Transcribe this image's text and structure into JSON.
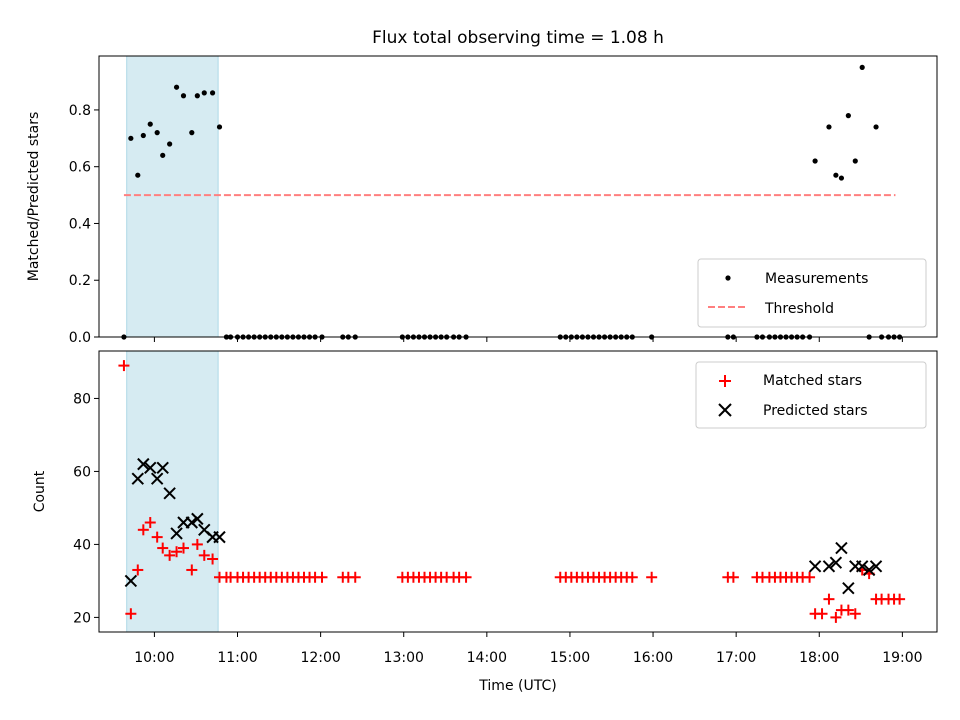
{
  "title": "Flux total observing time = 1.08 h",
  "colors": {
    "measurement": "#000000",
    "threshold": "#ff7f7f",
    "matched": "#ff0000",
    "predicted": "#000000",
    "highlight": "#add8e6"
  },
  "chart_data": [
    {
      "type": "scatter",
      "ylabel": "Matched/Predicted stars",
      "xlabel": "",
      "xlim": [
        "09:20",
        "19:25"
      ],
      "ylim": [
        0,
        0.99
      ],
      "yticks": [
        0.0,
        0.2,
        0.4,
        0.6,
        0.8
      ],
      "ytick_labels": [
        "0.0",
        "0.2",
        "0.4",
        "0.6",
        "0.8"
      ],
      "grid": false,
      "legend_position": "lower-right",
      "shaded_interval": [
        "09:40",
        "10:46"
      ],
      "series": [
        {
          "name": "Measurements",
          "marker": "dot",
          "points": [
            [
              "09:38",
              0.0
            ],
            [
              "09:43",
              0.7
            ],
            [
              "09:48",
              0.57
            ],
            [
              "09:52",
              0.71
            ],
            [
              "09:57",
              0.75
            ],
            [
              "10:02",
              0.72
            ],
            [
              "10:06",
              0.64
            ],
            [
              "10:11",
              0.68
            ],
            [
              "10:16",
              0.88
            ],
            [
              "10:21",
              0.85
            ],
            [
              "10:27",
              0.72
            ],
            [
              "10:31",
              0.85
            ],
            [
              "10:36",
              0.86
            ],
            [
              "10:42",
              0.86
            ],
            [
              "10:47",
              0.74
            ],
            [
              "10:52",
              0.0
            ],
            [
              "10:55",
              0.0
            ],
            [
              "11:00",
              0.0
            ],
            [
              "11:04",
              0.0
            ],
            [
              "11:08",
              0.0
            ],
            [
              "11:12",
              0.0
            ],
            [
              "11:16",
              0.0
            ],
            [
              "11:20",
              0.0
            ],
            [
              "11:24",
              0.0
            ],
            [
              "11:28",
              0.0
            ],
            [
              "11:32",
              0.0
            ],
            [
              "11:36",
              0.0
            ],
            [
              "11:40",
              0.0
            ],
            [
              "11:44",
              0.0
            ],
            [
              "11:48",
              0.0
            ],
            [
              "11:52",
              0.0
            ],
            [
              "11:56",
              0.0
            ],
            [
              "12:01",
              0.0
            ],
            [
              "12:16",
              0.0
            ],
            [
              "12:20",
              0.0
            ],
            [
              "12:25",
              0.0
            ],
            [
              "12:59",
              0.0
            ],
            [
              "13:03",
              0.0
            ],
            [
              "13:07",
              0.0
            ],
            [
              "13:11",
              0.0
            ],
            [
              "13:15",
              0.0
            ],
            [
              "13:19",
              0.0
            ],
            [
              "13:23",
              0.0
            ],
            [
              "13:27",
              0.0
            ],
            [
              "13:31",
              0.0
            ],
            [
              "13:36",
              0.0
            ],
            [
              "13:40",
              0.0
            ],
            [
              "13:45",
              0.0
            ],
            [
              "14:53",
              0.0
            ],
            [
              "14:57",
              0.0
            ],
            [
              "15:01",
              0.0
            ],
            [
              "15:05",
              0.0
            ],
            [
              "15:09",
              0.0
            ],
            [
              "15:13",
              0.0
            ],
            [
              "15:17",
              0.0
            ],
            [
              "15:21",
              0.0
            ],
            [
              "15:25",
              0.0
            ],
            [
              "15:29",
              0.0
            ],
            [
              "15:33",
              0.0
            ],
            [
              "15:37",
              0.0
            ],
            [
              "15:41",
              0.0
            ],
            [
              "15:45",
              0.0
            ],
            [
              "15:59",
              0.0
            ],
            [
              "16:54",
              0.0
            ],
            [
              "16:58",
              0.0
            ],
            [
              "17:15",
              0.0
            ],
            [
              "17:19",
              0.0
            ],
            [
              "17:24",
              0.0
            ],
            [
              "17:28",
              0.0
            ],
            [
              "17:32",
              0.0
            ],
            [
              "17:36",
              0.0
            ],
            [
              "17:40",
              0.0
            ],
            [
              "17:44",
              0.0
            ],
            [
              "17:48",
              0.0
            ],
            [
              "17:53",
              0.0
            ],
            [
              "17:57",
              0.62
            ],
            [
              "18:07",
              0.74
            ],
            [
              "18:12",
              0.57
            ],
            [
              "18:16",
              0.56
            ],
            [
              "18:21",
              0.78
            ],
            [
              "18:26",
              0.62
            ],
            [
              "18:31",
              0.95
            ],
            [
              "18:36",
              0.0
            ],
            [
              "18:41",
              0.74
            ],
            [
              "18:45",
              0.0
            ],
            [
              "18:50",
              0.0
            ],
            [
              "18:54",
              0.0
            ],
            [
              "18:58",
              0.0
            ]
          ]
        },
        {
          "name": "Threshold",
          "type": "line",
          "style": "dashed",
          "points": [
            [
              "09:38",
              0.5
            ],
            [
              "18:55",
              0.5
            ]
          ]
        }
      ]
    },
    {
      "type": "scatter",
      "ylabel": "Count",
      "xlabel": "Time (UTC)",
      "xlim": [
        "09:20",
        "19:25"
      ],
      "ylim": [
        16,
        93
      ],
      "yticks": [
        20,
        40,
        60,
        80
      ],
      "ytick_labels": [
        "20",
        "40",
        "60",
        "80"
      ],
      "xticks": [
        "10:00",
        "11:00",
        "12:00",
        "13:00",
        "14:00",
        "15:00",
        "16:00",
        "17:00",
        "18:00",
        "19:00"
      ],
      "grid": false,
      "legend_position": "upper-right",
      "shaded_interval": [
        "09:40",
        "10:46"
      ],
      "series": [
        {
          "name": "Matched stars",
          "marker": "plus",
          "points": [
            [
              "09:38",
              89
            ],
            [
              "09:43",
              21
            ],
            [
              "09:48",
              33
            ],
            [
              "09:52",
              44
            ],
            [
              "09:57",
              46
            ],
            [
              "10:02",
              42
            ],
            [
              "10:06",
              39
            ],
            [
              "10:11",
              37
            ],
            [
              "10:16",
              38
            ],
            [
              "10:21",
              39
            ],
            [
              "10:27",
              33
            ],
            [
              "10:31",
              40
            ],
            [
              "10:36",
              37
            ],
            [
              "10:42",
              36
            ],
            [
              "10:47",
              31
            ],
            [
              "10:52",
              31
            ],
            [
              "10:55",
              31
            ],
            [
              "11:00",
              31
            ],
            [
              "11:04",
              31
            ],
            [
              "11:08",
              31
            ],
            [
              "11:12",
              31
            ],
            [
              "11:16",
              31
            ],
            [
              "11:20",
              31
            ],
            [
              "11:24",
              31
            ],
            [
              "11:28",
              31
            ],
            [
              "11:32",
              31
            ],
            [
              "11:36",
              31
            ],
            [
              "11:40",
              31
            ],
            [
              "11:44",
              31
            ],
            [
              "11:48",
              31
            ],
            [
              "11:52",
              31
            ],
            [
              "11:56",
              31
            ],
            [
              "12:01",
              31
            ],
            [
              "12:16",
              31
            ],
            [
              "12:20",
              31
            ],
            [
              "12:25",
              31
            ],
            [
              "12:59",
              31
            ],
            [
              "13:03",
              31
            ],
            [
              "13:07",
              31
            ],
            [
              "13:11",
              31
            ],
            [
              "13:15",
              31
            ],
            [
              "13:19",
              31
            ],
            [
              "13:23",
              31
            ],
            [
              "13:27",
              31
            ],
            [
              "13:31",
              31
            ],
            [
              "13:36",
              31
            ],
            [
              "13:40",
              31
            ],
            [
              "13:45",
              31
            ],
            [
              "14:53",
              31
            ],
            [
              "14:57",
              31
            ],
            [
              "15:01",
              31
            ],
            [
              "15:05",
              31
            ],
            [
              "15:09",
              31
            ],
            [
              "15:13",
              31
            ],
            [
              "15:17",
              31
            ],
            [
              "15:21",
              31
            ],
            [
              "15:25",
              31
            ],
            [
              "15:29",
              31
            ],
            [
              "15:33",
              31
            ],
            [
              "15:37",
              31
            ],
            [
              "15:41",
              31
            ],
            [
              "15:45",
              31
            ],
            [
              "15:59",
              31
            ],
            [
              "16:54",
              31
            ],
            [
              "16:58",
              31
            ],
            [
              "17:15",
              31
            ],
            [
              "17:19",
              31
            ],
            [
              "17:24",
              31
            ],
            [
              "17:28",
              31
            ],
            [
              "17:32",
              31
            ],
            [
              "17:36",
              31
            ],
            [
              "17:40",
              31
            ],
            [
              "17:44",
              31
            ],
            [
              "17:48",
              31
            ],
            [
              "17:53",
              31
            ],
            [
              "17:57",
              21
            ],
            [
              "18:02",
              21
            ],
            [
              "18:07",
              25
            ],
            [
              "18:12",
              20
            ],
            [
              "18:16",
              22
            ],
            [
              "18:21",
              22
            ],
            [
              "18:26",
              21
            ],
            [
              "18:31",
              33
            ],
            [
              "18:36",
              32
            ],
            [
              "18:41",
              25
            ],
            [
              "18:45",
              25
            ],
            [
              "18:50",
              25
            ],
            [
              "18:54",
              25
            ],
            [
              "18:58",
              25
            ]
          ]
        },
        {
          "name": "Predicted stars",
          "marker": "x",
          "points": [
            [
              "09:43",
              30
            ],
            [
              "09:48",
              58
            ],
            [
              "09:52",
              62
            ],
            [
              "09:57",
              61
            ],
            [
              "10:02",
              58
            ],
            [
              "10:06",
              61
            ],
            [
              "10:11",
              54
            ],
            [
              "10:16",
              43
            ],
            [
              "10:21",
              46
            ],
            [
              "10:27",
              46
            ],
            [
              "10:31",
              47
            ],
            [
              "10:36",
              44
            ],
            [
              "10:42",
              42
            ],
            [
              "10:47",
              42
            ],
            [
              "17:57",
              34
            ],
            [
              "18:07",
              34
            ],
            [
              "18:12",
              35
            ],
            [
              "18:16",
              39
            ],
            [
              "18:21",
              28
            ],
            [
              "18:26",
              34
            ],
            [
              "18:31",
              34
            ],
            [
              "18:36",
              33
            ],
            [
              "18:41",
              34
            ]
          ]
        }
      ]
    }
  ]
}
